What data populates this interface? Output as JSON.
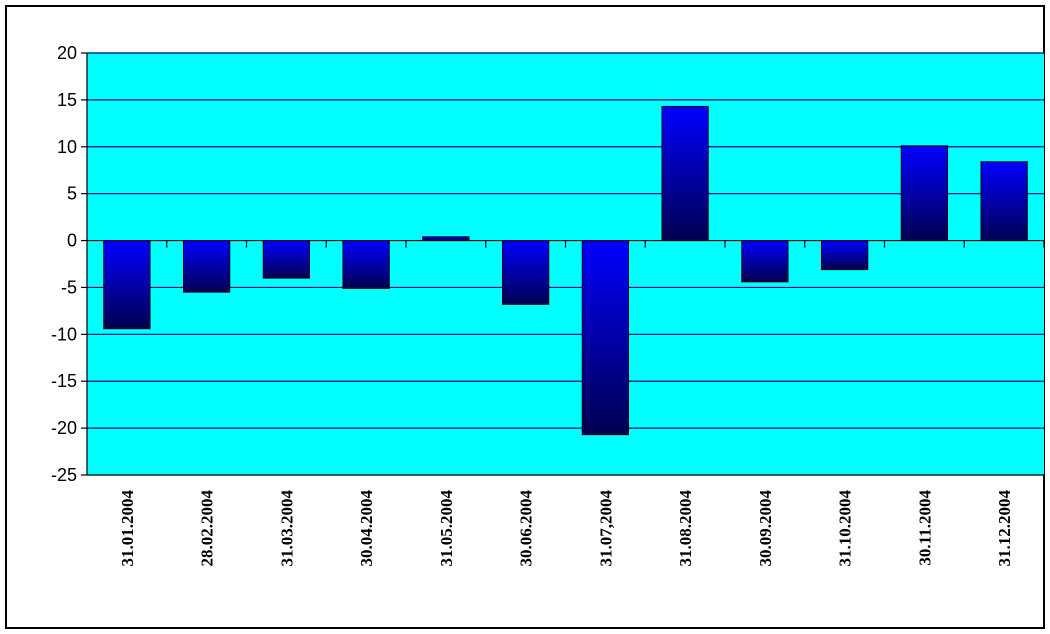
{
  "chart_data": {
    "type": "bar",
    "categories": [
      "31.01.2004",
      "28.02.2004",
      "31.03.2004",
      "30.04.2004",
      "31.05.2004",
      "30.06.2004",
      "31.07,2004",
      "31.08.2004",
      "30.09.2004",
      "31.10.2004",
      "30.11.2004",
      "31.12.2004"
    ],
    "values": [
      -9.4,
      -5.5,
      -4.0,
      -5.1,
      0.4,
      -6.8,
      -20.7,
      14.3,
      -4.4,
      -3.1,
      10.1,
      8.4
    ],
    "ylim": [
      -25,
      20
    ],
    "yticks": [
      20,
      15,
      10,
      5,
      0,
      -5,
      -10,
      -15,
      -20,
      -25
    ],
    "grid": true,
    "colors": {
      "plot_background": "#00ffff",
      "gridline": "#000080",
      "bar_top": "#0000ff",
      "bar_bottom": "#000050",
      "bar_edge": "#000000"
    }
  }
}
